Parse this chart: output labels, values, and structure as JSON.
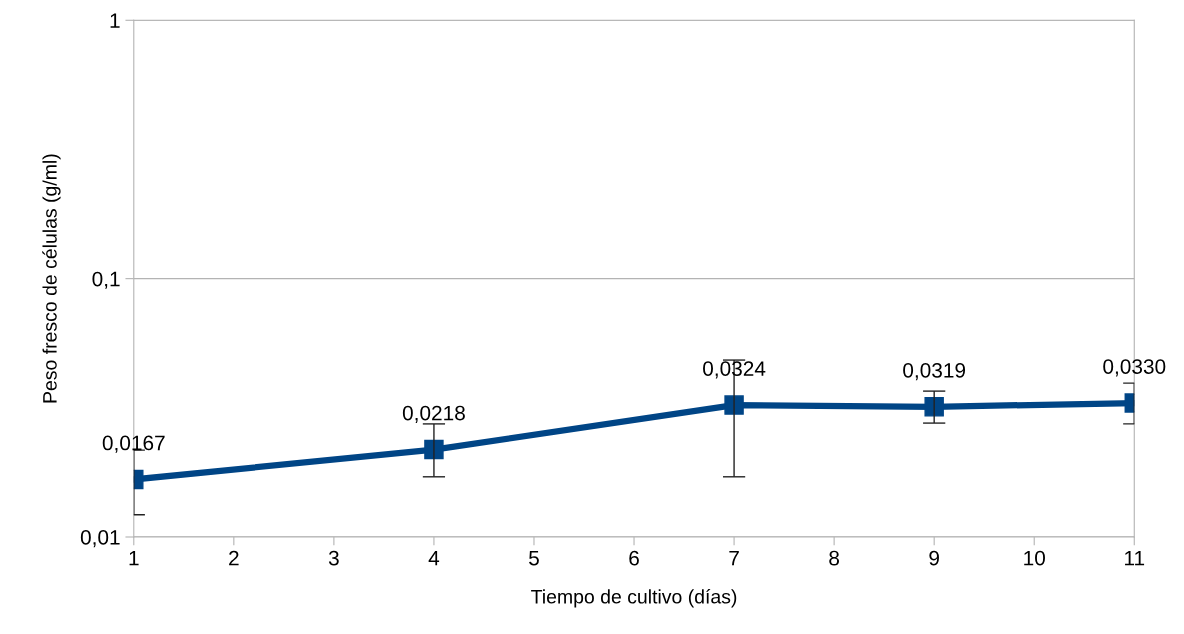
{
  "chart_data": {
    "type": "line",
    "xlabel": "Tiempo de cultivo (días)",
    "ylabel": "Peso fresco de células (g/ml)",
    "x": [
      1,
      4,
      7,
      9,
      11
    ],
    "series": [
      {
        "color": "#004586",
        "values": [
          0.0167,
          0.0218,
          0.0324,
          0.0319,
          0.033
        ],
        "value_labels": [
          "0,0167",
          "0,0218",
          "0,0324",
          "0,0319",
          "0,0330"
        ],
        "errors": [
          [
            0.0122,
            0.0217
          ],
          [
            0.0171,
            0.0274
          ],
          [
            0.0171,
            0.0484
          ],
          [
            0.0276,
            0.0367
          ],
          [
            0.0274,
            0.0394
          ]
        ]
      }
    ],
    "log": "y",
    "xlim": [
      1,
      11
    ],
    "xticks": [
      1,
      2,
      3,
      4,
      5,
      6,
      7,
      8,
      9,
      10,
      11
    ],
    "ylim": [
      0.01,
      1
    ],
    "yticks": [
      {
        "value": 0.01,
        "label": "0,01"
      },
      {
        "value": 0.1,
        "label": "0,1"
      },
      {
        "value": 1,
        "label": "1"
      }
    ],
    "grid": "y",
    "marker": "square",
    "line_style": "solid"
  }
}
